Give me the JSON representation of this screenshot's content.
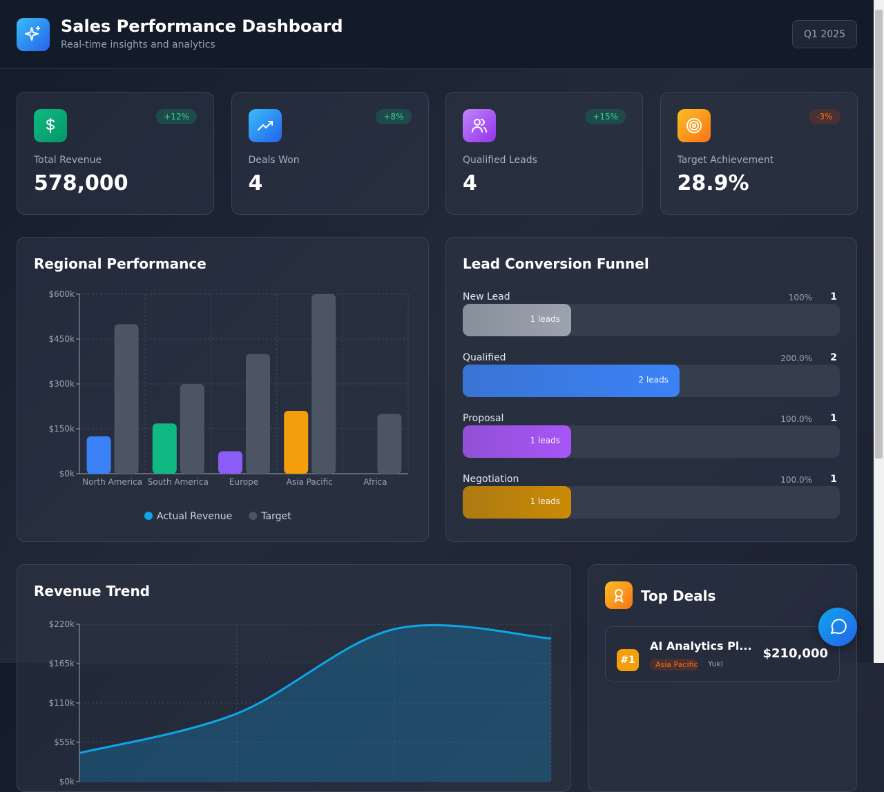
{
  "header": {
    "title": "Sales Performance Dashboard",
    "subtitle": "Real-time insights and analytics",
    "period": "Q1 2025"
  },
  "kpis": [
    {
      "label": "Total Revenue",
      "value": "578,000",
      "change": "+12%"
    },
    {
      "label": "Deals Won",
      "value": "4",
      "change": "+8%"
    },
    {
      "label": "Qualified Leads",
      "value": "4",
      "change": "+15%"
    },
    {
      "label": "Target Achievement",
      "value": "28.9%",
      "change": "-3%"
    }
  ],
  "chart_data": [
    {
      "type": "bar",
      "title": "Regional Performance",
      "categories": [
        "North America",
        "South America",
        "Europe",
        "Asia Pacific",
        "Africa"
      ],
      "series": [
        {
          "name": "Actual Revenue",
          "color": "#0ea5e9",
          "colors": [
            "#3b82f6",
            "#10b981",
            "#8b5cf6",
            "#f59e0b",
            "#ef4444"
          ],
          "values": [
            125,
            168,
            75,
            210,
            0
          ]
        },
        {
          "name": "Target",
          "color": "#4b5563",
          "values": [
            500,
            300,
            400,
            600,
            200
          ]
        }
      ],
      "ylim": [
        0,
        600
      ],
      "yticks": [
        {
          "value": 0,
          "label": "$0k"
        },
        {
          "value": 150,
          "label": "$150k"
        },
        {
          "value": 300,
          "label": "$300k"
        },
        {
          "value": 450,
          "label": "$450k"
        },
        {
          "value": 600,
          "label": "$600k"
        }
      ],
      "grid": true,
      "legend": "bottom"
    },
    {
      "type": "area",
      "title": "Revenue Trend",
      "categories": [
        null,
        null,
        null,
        null
      ],
      "series": [
        {
          "color": "#0ea5e9",
          "values": [
            40,
            95,
            213,
            200
          ]
        }
      ],
      "ylim": [
        0,
        220
      ],
      "yticks": [
        {
          "value": 0,
          "label": "$0k"
        },
        {
          "value": 55,
          "label": "$55k"
        },
        {
          "value": 110,
          "label": "$110k"
        },
        {
          "value": 165,
          "label": "$165k"
        },
        {
          "value": 220,
          "label": "$220k"
        }
      ],
      "grid": true
    }
  ],
  "funnel": {
    "title": "Lead Conversion Funnel",
    "stages": [
      {
        "name": "New Lead",
        "percent": "100%",
        "count": 1,
        "bar_label": "1 leads",
        "color": "#9ca3af"
      },
      {
        "name": "Qualified",
        "percent": "200.0%",
        "count": 2,
        "bar_label": "2 leads",
        "color": "#3b82f6"
      },
      {
        "name": "Proposal",
        "percent": "100.0%",
        "count": 1,
        "bar_label": "1 leads",
        "color": "#a855f7"
      },
      {
        "name": "Negotiation",
        "percent": "100.0%",
        "count": 1,
        "bar_label": "1 leads",
        "color": "#ca8a04"
      }
    ]
  },
  "top_deals": {
    "title": "Top Deals",
    "deals": [
      {
        "rank": "#1",
        "name": "AI Analytics Pl...",
        "value": "$210,000",
        "region": "Asia Pacific",
        "owner": "Yuki"
      }
    ]
  }
}
